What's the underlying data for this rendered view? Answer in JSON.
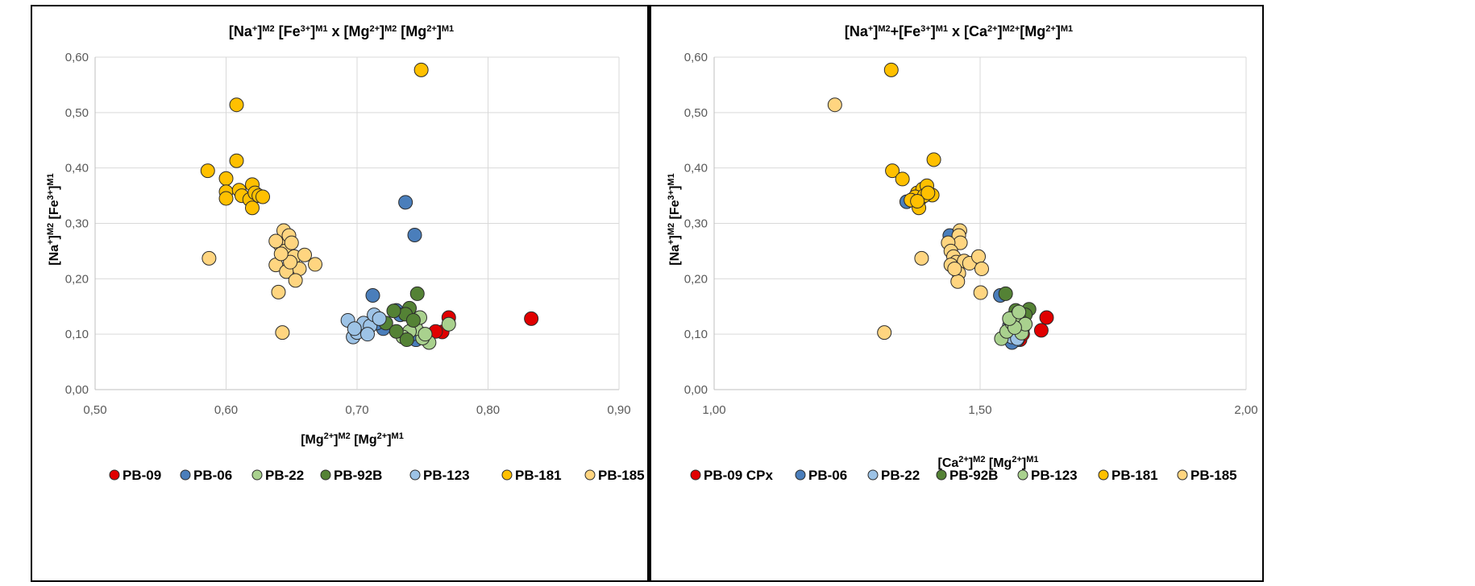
{
  "chart_data": [
    {
      "type": "scatter",
      "title": {
        "parts": [
          [
            "[Na",
            ""
          ],
          [
            "+",
            "sup"
          ],
          [
            "]",
            ""
          ],
          [
            "M2",
            "sup"
          ],
          [
            " [Fe",
            ""
          ],
          [
            "3+",
            "sup"
          ],
          [
            "]",
            ""
          ],
          [
            "M1",
            "sup"
          ],
          [
            " x [Mg",
            ""
          ],
          [
            "2+",
            "sup"
          ],
          [
            "]",
            ""
          ],
          [
            "M2",
            "sup"
          ],
          [
            " [Mg",
            ""
          ],
          [
            "2+",
            "sup"
          ],
          [
            "]",
            ""
          ],
          [
            "M1",
            "sup"
          ]
        ]
      },
      "xlabel": {
        "parts": [
          [
            "[Mg",
            ""
          ],
          [
            "2+",
            "sup"
          ],
          [
            "]",
            ""
          ],
          [
            "M2",
            "sup"
          ],
          [
            " [Mg",
            ""
          ],
          [
            "2+",
            "sup"
          ],
          [
            "]",
            ""
          ],
          [
            "M1",
            "sup"
          ]
        ]
      },
      "ylabel": {
        "parts": [
          [
            "[Na",
            ""
          ],
          [
            "+",
            "sup"
          ],
          [
            "]",
            ""
          ],
          [
            "M2",
            "sup"
          ],
          [
            " [Fe",
            ""
          ],
          [
            "3+",
            "sup"
          ],
          [
            "]",
            ""
          ],
          [
            "M1",
            "sup"
          ]
        ]
      },
      "xlim": [
        0.5,
        0.9
      ],
      "ylim": [
        0.0,
        0.6
      ],
      "xticks": [
        0.5,
        0.6,
        0.7,
        0.8,
        0.9
      ],
      "yticks": [
        0.0,
        0.1,
        0.2,
        0.3,
        0.4,
        0.5,
        0.6
      ],
      "xtick_labels": [
        "0,50",
        "0,60",
        "0,70",
        "0,80",
        "0,90"
      ],
      "ytick_labels": [
        "0,00",
        "0,10",
        "0,20",
        "0,30",
        "0,40",
        "0,50",
        "0,60"
      ],
      "grid": true,
      "legend_position": "bottom",
      "series": [
        {
          "name": "PB-09",
          "color": "#e00000",
          "points": [
            [
              0.833,
              0.128
            ],
            [
              0.77,
              0.13
            ],
            [
              0.765,
              0.104
            ],
            [
              0.76,
              0.105
            ],
            [
              0.75,
              0.1
            ],
            [
              0.745,
              0.09
            ],
            [
              0.74,
              0.098
            ]
          ]
        },
        {
          "name": "PB-06",
          "color": "#4a7ebb",
          "points": [
            [
              0.737,
              0.338
            ],
            [
              0.744,
              0.279
            ],
            [
              0.712,
              0.17
            ],
            [
              0.73,
              0.143
            ],
            [
              0.733,
              0.135
            ],
            [
              0.72,
              0.11
            ],
            [
              0.715,
              0.12
            ],
            [
              0.745,
              0.09
            ],
            [
              0.742,
              0.1
            ]
          ]
        },
        {
          "name": "PB-22",
          "color": "#a9d18e",
          "points": [
            [
              0.77,
              0.118
            ],
            [
              0.755,
              0.085
            ],
            [
              0.75,
              0.093
            ],
            [
              0.745,
              0.11
            ],
            [
              0.74,
              0.105
            ],
            [
              0.735,
              0.095
            ],
            [
              0.748,
              0.13
            ],
            [
              0.752,
              0.1
            ]
          ]
        },
        {
          "name": "PB-92B",
          "color": "#548235",
          "points": [
            [
              0.746,
              0.173
            ],
            [
              0.74,
              0.147
            ],
            [
              0.737,
              0.136
            ],
            [
              0.728,
              0.142
            ],
            [
              0.722,
              0.12
            ],
            [
              0.73,
              0.105
            ],
            [
              0.738,
              0.09
            ],
            [
              0.743,
              0.125
            ]
          ]
        },
        {
          "name": "PB-123",
          "color": "#9dc3e6",
          "points": [
            [
              0.693,
              0.125
            ],
            [
              0.697,
              0.095
            ],
            [
              0.7,
              0.103
            ],
            [
              0.705,
              0.12
            ],
            [
              0.71,
              0.115
            ],
            [
              0.713,
              0.135
            ],
            [
              0.698,
              0.11
            ],
            [
              0.717,
              0.128
            ],
            [
              0.708,
              0.1
            ]
          ]
        },
        {
          "name": "PB-181",
          "color": "#ffc000",
          "points": [
            [
              0.749,
              0.577
            ],
            [
              0.608,
              0.514
            ],
            [
              0.608,
              0.413
            ],
            [
              0.586,
              0.395
            ],
            [
              0.6,
              0.381
            ],
            [
              0.6,
              0.357
            ],
            [
              0.6,
              0.345
            ],
            [
              0.61,
              0.36
            ],
            [
              0.612,
              0.35
            ],
            [
              0.618,
              0.343
            ],
            [
              0.62,
              0.37
            ],
            [
              0.622,
              0.355
            ],
            [
              0.625,
              0.35
            ],
            [
              0.628,
              0.348
            ],
            [
              0.62,
              0.328
            ]
          ]
        },
        {
          "name": "PB-185",
          "color": "#ffd580",
          "points": [
            [
              0.587,
              0.237
            ],
            [
              0.643,
              0.103
            ],
            [
              0.64,
              0.176
            ],
            [
              0.644,
              0.287
            ],
            [
              0.641,
              0.262
            ],
            [
              0.638,
              0.268
            ],
            [
              0.645,
              0.25
            ],
            [
              0.648,
              0.278
            ],
            [
              0.65,
              0.265
            ],
            [
              0.652,
              0.24
            ],
            [
              0.656,
              0.218
            ],
            [
              0.66,
              0.243
            ],
            [
              0.668,
              0.226
            ],
            [
              0.638,
              0.225
            ],
            [
              0.646,
              0.213
            ],
            [
              0.653,
              0.197
            ],
            [
              0.649,
              0.23
            ],
            [
              0.642,
              0.245
            ]
          ]
        }
      ]
    },
    {
      "type": "scatter",
      "title": {
        "parts": [
          [
            "[Na",
            ""
          ],
          [
            "+",
            "sup"
          ],
          [
            "]",
            ""
          ],
          [
            "M2",
            "sup"
          ],
          [
            "+[Fe",
            ""
          ],
          [
            "3+",
            "sup"
          ],
          [
            "]",
            ""
          ],
          [
            "M1",
            "sup"
          ],
          [
            " x [Ca",
            ""
          ],
          [
            "2+",
            "sup"
          ],
          [
            "]",
            ""
          ],
          [
            "M2+",
            "sup"
          ],
          [
            "[Mg",
            ""
          ],
          [
            "2+",
            "sup"
          ],
          [
            "]",
            ""
          ],
          [
            "M1",
            "sup"
          ]
        ]
      },
      "xlabel": {
        "parts": [
          [
            "[Ca",
            ""
          ],
          [
            "2+",
            "sup"
          ],
          [
            "]",
            ""
          ],
          [
            "M2",
            "sup"
          ],
          [
            " [Mg",
            ""
          ],
          [
            "2+",
            "sup"
          ],
          [
            "]",
            ""
          ],
          [
            "M1",
            "sup"
          ]
        ]
      },
      "ylabel": {
        "parts": [
          [
            "[Na",
            ""
          ],
          [
            "+",
            "sup"
          ],
          [
            "]",
            ""
          ],
          [
            "M2",
            "sup"
          ],
          [
            " [Fe",
            ""
          ],
          [
            "3+",
            "sup"
          ],
          [
            "]",
            ""
          ],
          [
            "M1",
            "sup"
          ]
        ]
      },
      "xlim": [
        1.0,
        2.0
      ],
      "ylim": [
        0.0,
        0.6
      ],
      "xticks": [
        1.0,
        1.5,
        2.0
      ],
      "yticks": [
        0.0,
        0.1,
        0.2,
        0.3,
        0.4,
        0.5,
        0.6
      ],
      "xtick_labels": [
        "1,00",
        "1,50",
        "2,00"
      ],
      "ytick_labels": [
        "0,00",
        "0,10",
        "0,20",
        "0,30",
        "0,40",
        "0,50",
        "0,60"
      ],
      "grid": true,
      "legend_position": "bottom",
      "series": [
        {
          "name": "PB-09 CPx",
          "color": "#e00000",
          "points": [
            [
              1.625,
              0.13
            ],
            [
              1.615,
              0.107
            ],
            [
              1.575,
              0.09
            ],
            [
              1.58,
              0.1
            ]
          ]
        },
        {
          "name": "PB-06",
          "color": "#4a7ebb",
          "points": [
            [
              1.362,
              0.339
            ],
            [
              1.443,
              0.278
            ],
            [
              1.538,
              0.17
            ],
            [
              1.57,
              0.09
            ],
            [
              1.565,
              0.1
            ],
            [
              1.56,
              0.085
            ]
          ]
        },
        {
          "name": "PB-22",
          "color": "#9dc3e6",
          "points": [
            [
              1.555,
              0.115
            ],
            [
              1.56,
              0.095
            ],
            [
              1.565,
              0.105
            ],
            [
              1.57,
              0.092
            ],
            [
              1.558,
              0.12
            ]
          ]
        },
        {
          "name": "PB-92B",
          "color": "#548235",
          "points": [
            [
              1.548,
              0.173
            ],
            [
              1.592,
              0.145
            ],
            [
              1.567,
              0.143
            ],
            [
              1.585,
              0.135
            ],
            [
              1.575,
              0.125
            ],
            [
              1.58,
              0.11
            ]
          ]
        },
        {
          "name": "PB-123",
          "color": "#a9d18e",
          "points": [
            [
              1.54,
              0.092
            ],
            [
              1.55,
              0.105
            ],
            [
              1.56,
              0.12
            ],
            [
              1.57,
              0.135
            ],
            [
              1.578,
              0.102
            ],
            [
              1.585,
              0.118
            ],
            [
              1.565,
              0.112
            ],
            [
              1.555,
              0.128
            ],
            [
              1.573,
              0.14
            ]
          ]
        },
        {
          "name": "PB-181",
          "color": "#ffc000",
          "points": [
            [
              1.333,
              0.577
            ],
            [
              1.335,
              0.395
            ],
            [
              1.354,
              0.38
            ],
            [
              1.382,
              0.355
            ],
            [
              1.392,
              0.362
            ],
            [
              1.4,
              0.368
            ],
            [
              1.41,
              0.351
            ],
            [
              1.413,
              0.415
            ],
            [
              1.388,
              0.345
            ],
            [
              1.378,
              0.348
            ],
            [
              1.37,
              0.342
            ],
            [
              1.395,
              0.35
            ],
            [
              1.385,
              0.328
            ],
            [
              1.402,
              0.355
            ],
            [
              1.382,
              0.34
            ]
          ]
        },
        {
          "name": "PB-185",
          "color": "#ffd580",
          "points": [
            [
              1.227,
              0.514
            ],
            [
              1.32,
              0.103
            ],
            [
              1.39,
              0.237
            ],
            [
              1.462,
              0.287
            ],
            [
              1.46,
              0.278
            ],
            [
              1.463,
              0.265
            ],
            [
              1.44,
              0.265
            ],
            [
              1.445,
              0.25
            ],
            [
              1.45,
              0.24
            ],
            [
              1.455,
              0.23
            ],
            [
              1.47,
              0.232
            ],
            [
              1.48,
              0.228
            ],
            [
              1.497,
              0.24
            ],
            [
              1.503,
              0.218
            ],
            [
              1.501,
              0.175
            ],
            [
              1.46,
              0.21
            ],
            [
              1.458,
              0.195
            ],
            [
              1.445,
              0.225
            ],
            [
              1.452,
              0.218
            ]
          ]
        }
      ]
    }
  ]
}
